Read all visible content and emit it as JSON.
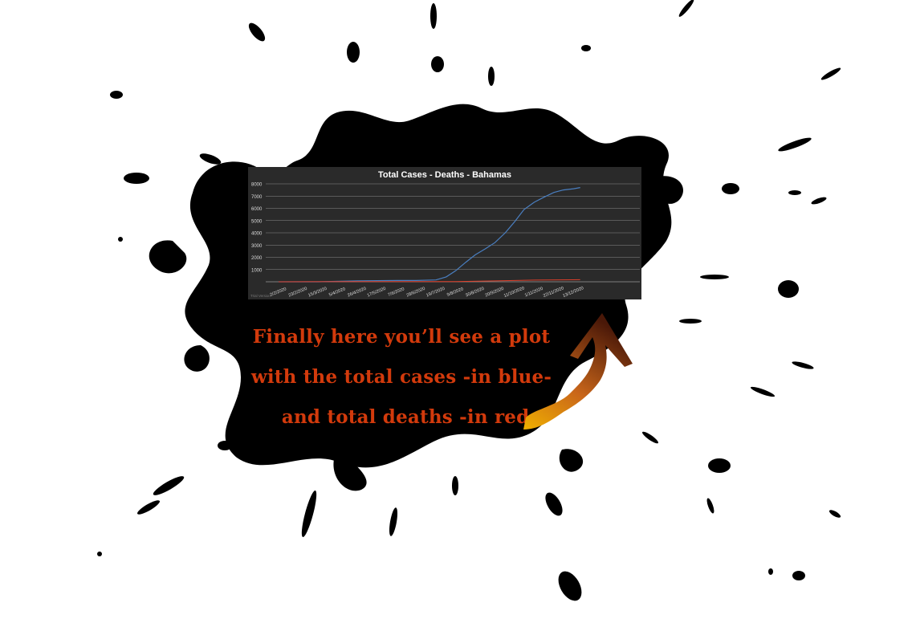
{
  "chart_data": {
    "type": "line",
    "title": "Total Cases - Deaths - Bahamas",
    "xlabel": "",
    "ylabel": "",
    "ylim": [
      0,
      8000
    ],
    "yticks": [
      1000,
      2000,
      3000,
      4000,
      5000,
      6000,
      7000,
      8000
    ],
    "x_tick_labels": [
      "2/2/2020",
      "23/2/2020",
      "15/3/2020",
      "5/4/2020",
      "26/4/2020",
      "17/5/2020",
      "7/6/2020",
      "28/6/2020",
      "19/7/2020",
      "9/8/2020",
      "30/8/2020",
      "20/9/2020",
      "11/10/2020",
      "1/11/2020",
      "22/11/2020",
      "13/12/2020"
    ],
    "grid": true,
    "series": [
      {
        "color": "#4a7fc1",
        "x": [
          "2/2/2020",
          "15/3/2020",
          "26/4/2020",
          "7/6/2020",
          "28/6/2020",
          "19/7/2020",
          "30/7/2020",
          "9/8/2020",
          "20/8/2020",
          "30/8/2020",
          "10/9/2020",
          "20/9/2020",
          "1/10/2020",
          "11/10/2020",
          "21/10/2020",
          "1/11/2020",
          "11/11/2020",
          "22/11/2020",
          "2/12/2020",
          "13/12/2020",
          "20/12/2020"
        ],
        "values": [
          0,
          2,
          80,
          104,
          104,
          150,
          400,
          900,
          1600,
          2200,
          2700,
          3200,
          4000,
          4900,
          5900,
          6500,
          6900,
          7300,
          7500,
          7600,
          7700
        ]
      },
      {
        "color": "#e0402a",
        "x": [
          "2/2/2020",
          "26/4/2020",
          "19/7/2020",
          "9/8/2020",
          "20/9/2020",
          "1/11/2020",
          "13/12/2020",
          "20/12/2020"
        ],
        "values": [
          0,
          11,
          11,
          20,
          70,
          140,
          165,
          170
        ]
      }
    ],
    "footer_left": "Trial Version"
  },
  "caption": {
    "line1": "Finally here you’ll see a plot",
    "line2": "with the total cases -in blue-",
    "line3": "and total deaths -in red-"
  }
}
